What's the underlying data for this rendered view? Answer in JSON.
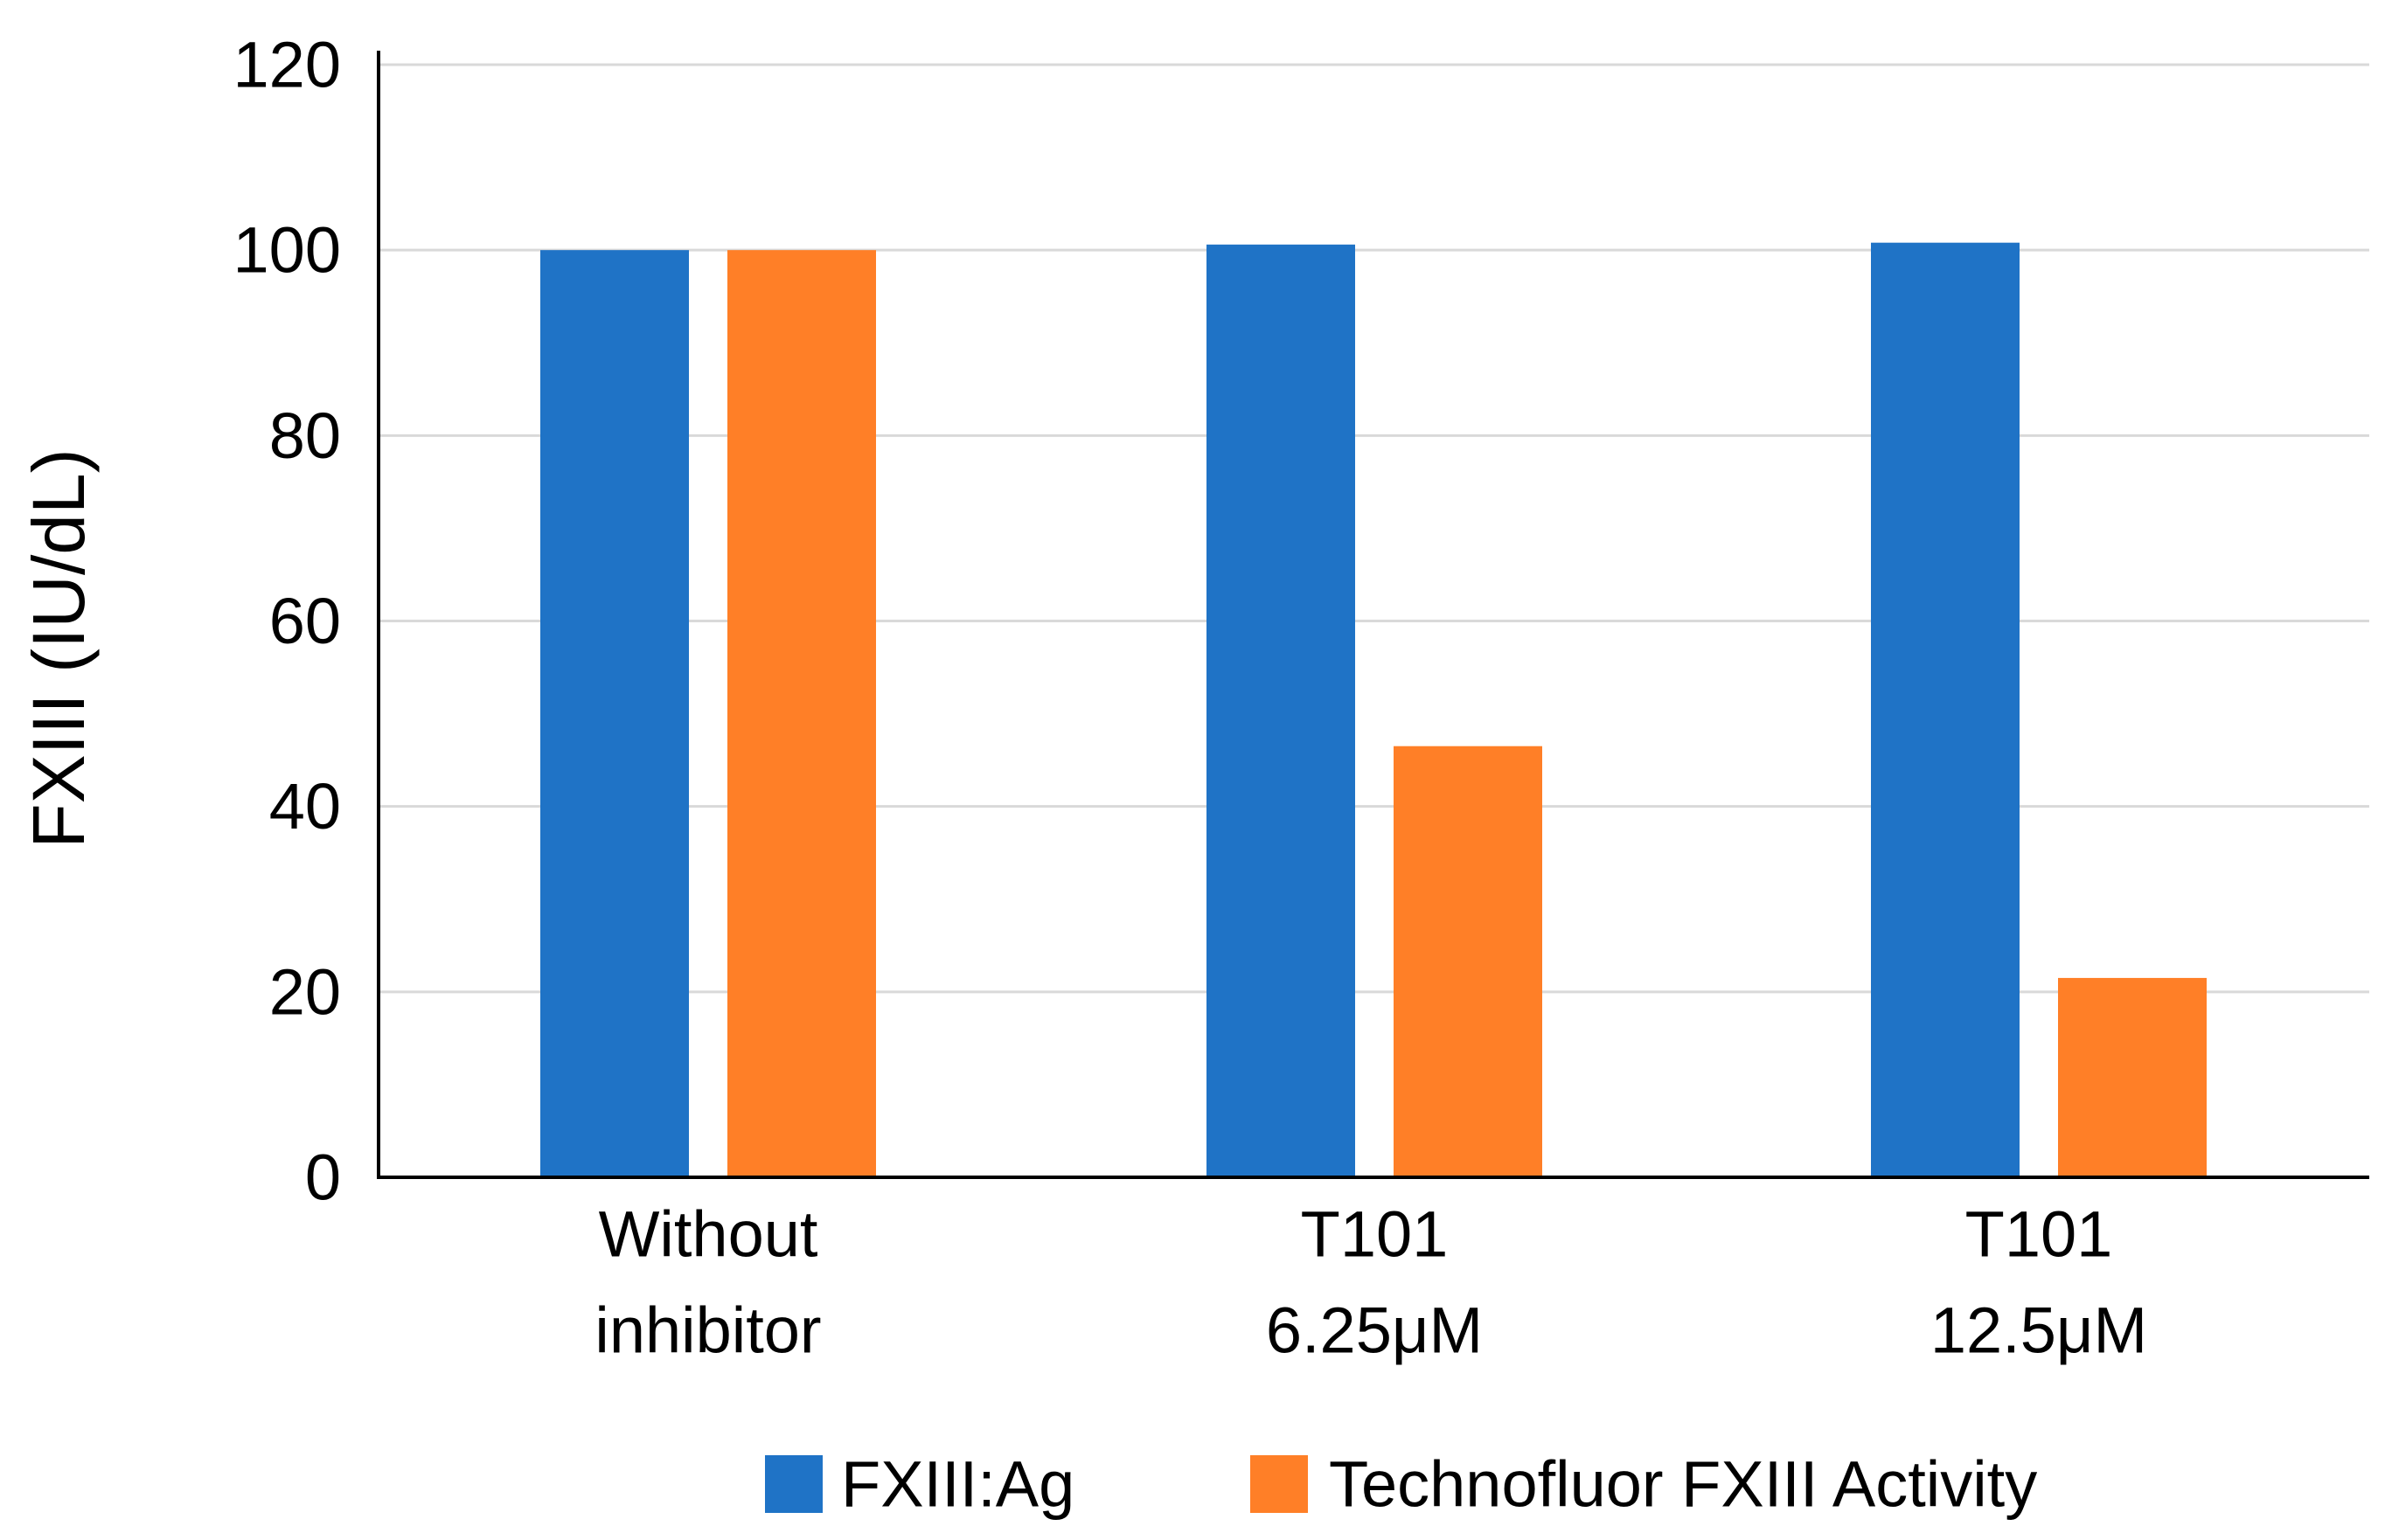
{
  "chart_data": {
    "type": "bar",
    "title": "",
    "xlabel": "",
    "ylabel": "FXIII (IU/dL)",
    "ylim": [
      0,
      120
    ],
    "yticks": [
      0,
      20,
      40,
      60,
      80,
      100,
      120
    ],
    "grid": true,
    "legend_position": "bottom",
    "categories": [
      [
        "Without",
        "inhibitor"
      ],
      [
        "T101",
        "6.25μM"
      ],
      [
        "T101",
        "12.5μM"
      ]
    ],
    "series": [
      {
        "name": "FXIII:Ag",
        "color": "#1f73c6",
        "values": [
          100,
          100.6,
          100.8
        ]
      },
      {
        "name": "Technofluor FXIII Activity",
        "color": "#ff7f27",
        "values": [
          100,
          46.5,
          21.5
        ]
      }
    ]
  }
}
